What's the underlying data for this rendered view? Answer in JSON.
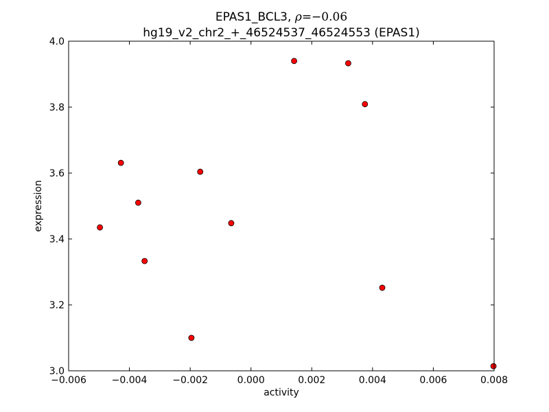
{
  "chart_data": {
    "type": "scatter",
    "title_prefix": "EPAS1_BCL3, ",
    "title_rho_symbol": "ρ",
    "title_rho_value": "=−0.06",
    "subtitle": "hg19_v2_chr2_+_46524537_46524553 (EPAS1)",
    "xlabel": "activity",
    "ylabel": "expression",
    "xlim": [
      -0.006,
      0.008
    ],
    "ylim": [
      3.0,
      4.0
    ],
    "x_ticks": [
      -0.006,
      -0.004,
      -0.002,
      0.0,
      0.002,
      0.004,
      0.006,
      0.008
    ],
    "x_tick_labels": [
      "−0.006",
      "−0.004",
      "−0.002",
      "0.000",
      "0.002",
      "0.004",
      "0.006",
      "0.008"
    ],
    "y_ticks": [
      3.0,
      3.2,
      3.4,
      3.6,
      3.8,
      4.0
    ],
    "y_tick_labels": [
      "3.0",
      "3.2",
      "3.4",
      "3.6",
      "3.8",
      "4.0"
    ],
    "grid": false,
    "marker_color": "#ff0000",
    "marker_edge_color": "#000000",
    "points": [
      {
        "x": -0.00497,
        "y": 3.435
      },
      {
        "x": -0.00428,
        "y": 3.631
      },
      {
        "x": -0.00371,
        "y": 3.51
      },
      {
        "x": -0.0035,
        "y": 3.333
      },
      {
        "x": -0.00196,
        "y": 3.1
      },
      {
        "x": -0.00167,
        "y": 3.604
      },
      {
        "x": -0.00065,
        "y": 3.448
      },
      {
        "x": 0.00142,
        "y": 3.94
      },
      {
        "x": 0.0032,
        "y": 3.933
      },
      {
        "x": 0.00375,
        "y": 3.809
      },
      {
        "x": 0.00432,
        "y": 3.252
      },
      {
        "x": 0.00798,
        "y": 3.014
      }
    ]
  }
}
